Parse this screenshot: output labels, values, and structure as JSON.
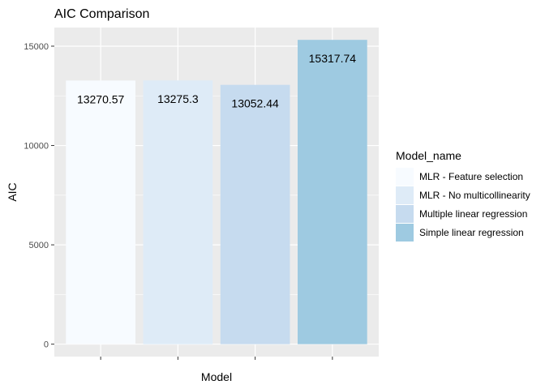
{
  "chart_data": {
    "type": "bar",
    "title": "AIC Comparison",
    "xlabel": "Model",
    "ylabel": "AIC",
    "categories": [
      "MLR - Feature selection",
      "MLR - No multicollinearity",
      "Multiple linear regression",
      "Simple linear regression"
    ],
    "values": [
      13270.57,
      13275.3,
      13052.44,
      15317.74
    ],
    "value_labels": [
      "13270.57",
      "13275.3",
      "13052.44",
      "15317.74"
    ],
    "colors": [
      "#f7fbff",
      "#deebf7",
      "#c6dbef",
      "#9ecae1"
    ],
    "ylim": [
      -625,
      15937
    ],
    "yticks": [
      0,
      5000,
      10000,
      15000
    ],
    "ytick_labels": [
      "0",
      "5000",
      "10000",
      "15000"
    ],
    "grid": true,
    "panel_background": "#ebebeb",
    "legend": {
      "title": "Model_name",
      "position": "right",
      "entries": [
        "MLR - Feature selection",
        "MLR - No multicollinearity",
        "Multiple linear regression",
        "Simple linear regression"
      ]
    }
  }
}
